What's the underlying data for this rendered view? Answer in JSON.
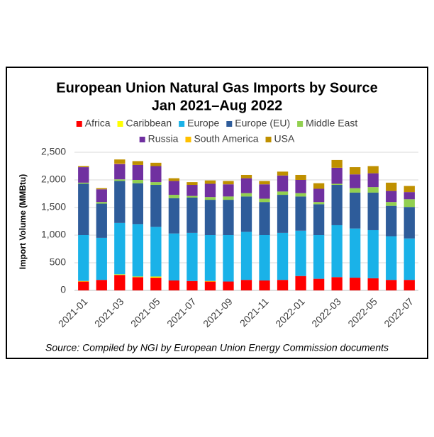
{
  "chart_data": {
    "type": "bar",
    "stacked": true,
    "title": [
      "European Union Natural Gas Imports by Source",
      "Jan 2021–Aug 2022"
    ],
    "ylabel": "Import Volume (MMBtu)",
    "source": "Source: Compiled by NGI by European Union Energy Commission documents",
    "categories": [
      "2021-01",
      null,
      "2021-03",
      null,
      "2021-05",
      null,
      "2021-07",
      null,
      "2021-09",
      null,
      "2021-11",
      null,
      "2022-01",
      null,
      "2022-03",
      null,
      "2022-05",
      null,
      "2022-07"
    ],
    "ylim": [
      0,
      2500
    ],
    "yticks": [
      0,
      500,
      {
        "value": 1000,
        "label": "1,000"
      },
      {
        "value": 1500,
        "label": "1,500"
      },
      {
        "value": 2000,
        "label": "2,000"
      },
      {
        "value": 2500,
        "label": "2,500"
      }
    ],
    "grid": true,
    "series": [
      {
        "name": "Africa",
        "color": "#ff0000",
        "values": [
          160,
          190,
          280,
          240,
          230,
          180,
          170,
          160,
          160,
          190,
          180,
          190,
          260,
          210,
          240,
          230,
          220,
          190,
          190
        ]
      },
      {
        "name": "Caribbean",
        "color": "#ffff00",
        "values": [
          10,
          0,
          10,
          10,
          20,
          0,
          0,
          10,
          0,
          0,
          0,
          0,
          0,
          0,
          0,
          0,
          0,
          0,
          0
        ]
      },
      {
        "name": "Europe",
        "color": "#1ab2e8",
        "values": [
          830,
          760,
          930,
          950,
          900,
          850,
          870,
          830,
          840,
          870,
          820,
          850,
          820,
          790,
          940,
          890,
          870,
          790,
          750
        ]
      },
      {
        "name": "Europe (EU)",
        "color": "#2e5c9a",
        "values": [
          930,
          620,
          760,
          740,
          760,
          640,
          640,
          640,
          640,
          640,
          600,
          690,
          620,
          560,
          730,
          650,
          680,
          550,
          570
        ]
      },
      {
        "name": "Middle East",
        "color": "#92d050",
        "values": [
          20,
          30,
          30,
          60,
          50,
          60,
          30,
          50,
          60,
          60,
          60,
          60,
          60,
          40,
          20,
          80,
          100,
          70,
          140
        ]
      },
      {
        "name": "Russia",
        "color": "#7030a0",
        "values": [
          280,
          230,
          280,
          270,
          290,
          250,
          200,
          240,
          220,
          270,
          260,
          290,
          240,
          240,
          290,
          250,
          250,
          200,
          130
        ]
      },
      {
        "name": "South America",
        "color": "#ffc000",
        "values": [
          0,
          0,
          10,
          0,
          0,
          0,
          0,
          0,
          0,
          0,
          0,
          0,
          0,
          0,
          0,
          0,
          0,
          0,
          0
        ]
      },
      {
        "name": "USA",
        "color": "#bf9000",
        "values": [
          20,
          20,
          70,
          70,
          60,
          50,
          50,
          60,
          60,
          60,
          60,
          70,
          90,
          100,
          140,
          130,
          130,
          150,
          110
        ]
      }
    ]
  }
}
